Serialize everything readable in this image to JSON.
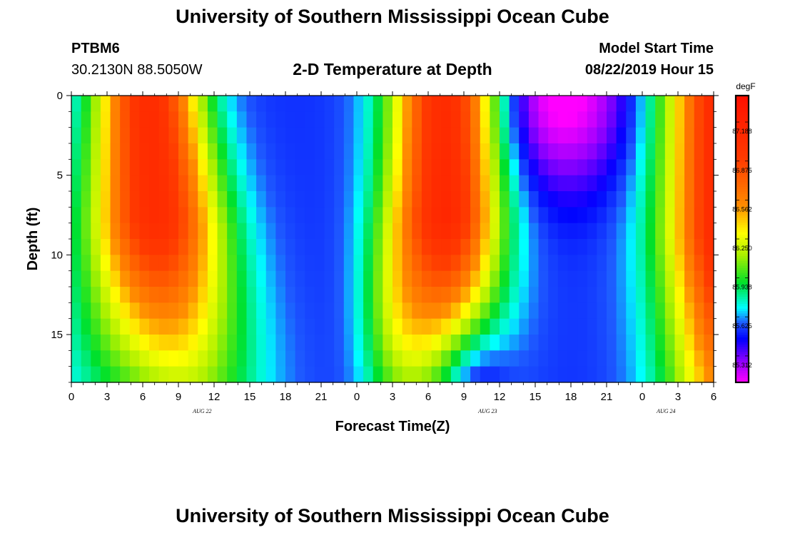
{
  "title_top": "University of Southern Mississippi Ocean Cube",
  "title_bottom": "University of Southern Mississippi Ocean Cube",
  "station": {
    "id": "PTBM6",
    "coords": "30.2130N 88.5050W"
  },
  "model": {
    "label": "Model Start Time",
    "start": "08/22/2019 Hour 15"
  },
  "colors": {
    "magenta": "#ff00ff",
    "purple": "#8a00ff",
    "blue": "#0000ff",
    "royal": "#1e5aff",
    "cyan": "#00ffff",
    "green": "#00e02a",
    "yellowgreen": "#a8f000",
    "yellow": "#ffff00",
    "orange": "#ff8c00",
    "red": "#ff3a00",
    "red2": "#ff1000"
  },
  "chart_data": {
    "type": "heatmap",
    "title": "2-D Temperature at Depth",
    "xlabel": "Forecast Time(Z)",
    "ylabel": "Depth (ft)",
    "x_tick_labels": [
      "0",
      "3",
      "6",
      "9",
      "12",
      "15",
      "18",
      "21",
      "0",
      "3",
      "6",
      "9",
      "12",
      "15",
      "18",
      "21",
      "0",
      "3",
      "6"
    ],
    "x_tick_hours": [
      0,
      3,
      6,
      9,
      12,
      15,
      18,
      21,
      24,
      27,
      30,
      33,
      36,
      39,
      42,
      45,
      48,
      51,
      54
    ],
    "date_labels": [
      {
        "text": "AUG 22",
        "hour": 11
      },
      {
        "text": "AUG 23",
        "hour": 35
      },
      {
        "text": "AUG 24",
        "hour": 50
      }
    ],
    "xlim": [
      0,
      54
    ],
    "ylim": [
      0,
      18
    ],
    "y_ticks": [
      0,
      5,
      10,
      15
    ],
    "y_reversed": true,
    "colorbar": {
      "unit": "degF",
      "vmin": 85.1,
      "vmax": 87.4,
      "ticks": [
        "87.188",
        "86.875",
        "86.562",
        "86.250",
        "85.938",
        "85.625",
        "85.312"
      ],
      "tick_values": [
        87.188,
        86.875,
        86.562,
        86.25,
        85.938,
        85.625,
        85.312
      ]
    },
    "grid": false
  }
}
